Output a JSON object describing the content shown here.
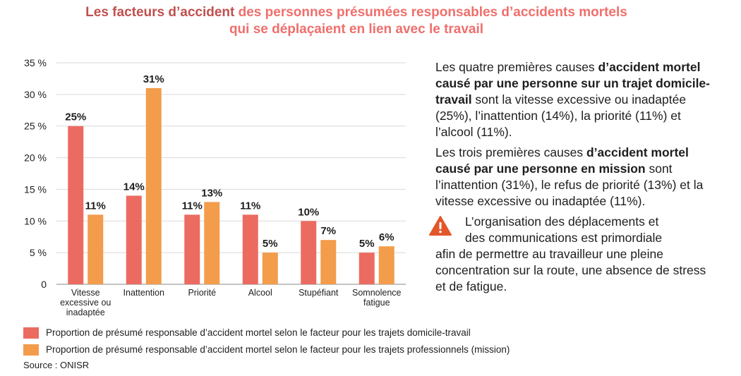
{
  "title": {
    "part1": "Les ",
    "part2": "facteurs d’accident",
    "part3": " des personnes présumées responsables d’accidents mortels",
    "line2": "qui se déplaçaient en lien avec le travail"
  },
  "colors": {
    "domicile": "#ec6b61",
    "mission": "#f39c4b",
    "title_dark": "#c0504d",
    "title_light": "#ef6f6c",
    "warning": "#e3562a"
  },
  "chart_data": {
    "type": "bar",
    "categories": [
      [
        "Vitesse",
        "excessive ou",
        "inadaptée"
      ],
      [
        "Inattention"
      ],
      [
        "Priorité"
      ],
      [
        "Alcool"
      ],
      [
        "Stupéfiant"
      ],
      [
        "Somnolence",
        "fatigue"
      ]
    ],
    "series": [
      {
        "name": "Proportion de présumé responsable d’accident mortel selon le facteur pour les trajets domicile-travail",
        "values": [
          25,
          14,
          11,
          11,
          10,
          5
        ],
        "labels": [
          "25%",
          "14%",
          "11%",
          "11%",
          "10%",
          "5%"
        ]
      },
      {
        "name": "Proportion de présumé responsable d’accident mortel selon le facteur pour les trajets professionnels (mission)",
        "values": [
          11,
          31,
          13,
          5,
          7,
          6
        ],
        "labels": [
          "11%",
          "31%",
          "13%",
          "5%",
          "7%",
          "6%"
        ]
      }
    ],
    "yticks": [
      "0",
      "5 %",
      "10 %",
      "15 %",
      "20 %",
      "25 %",
      "30 %",
      "35 %"
    ],
    "ylim": [
      0,
      35
    ],
    "grid": true,
    "legend_position": "bottom"
  },
  "side": {
    "p1": {
      "a": "Les quatre premières causes ",
      "b": "d’accident mortel causé par une personne sur un trajet domicile-travail",
      "c": " sont la vitesse excessive ou inadaptée (25%), l’inattention (14%), la priorité (11%) et l’alcool (11%)."
    },
    "p2": {
      "a": "Les trois premières causes ",
      "b": "d’accident mortel causé par une personne en mission",
      "c": " sont l’inattention (31%), le refus de priorité (13%) et la vitesse excessive ou inadaptée (11%)."
    },
    "p3": {
      "line1": "L’organisation des déplacements et",
      "line2": "des communications est primordiale",
      "rest": "afin de permettre au travailleur une pleine concentration sur la route, une absence de stress et de fatigue."
    },
    "warning_icon": "warning-triangle-icon"
  },
  "legend": {
    "item1": "Proportion de présumé responsable d’accident mortel selon le facteur pour les trajets domicile-travail",
    "item2": "Proportion de présumé responsable d’accident mortel selon le facteur pour les trajets professionnels (mission)"
  },
  "source": "Source : ONISR"
}
